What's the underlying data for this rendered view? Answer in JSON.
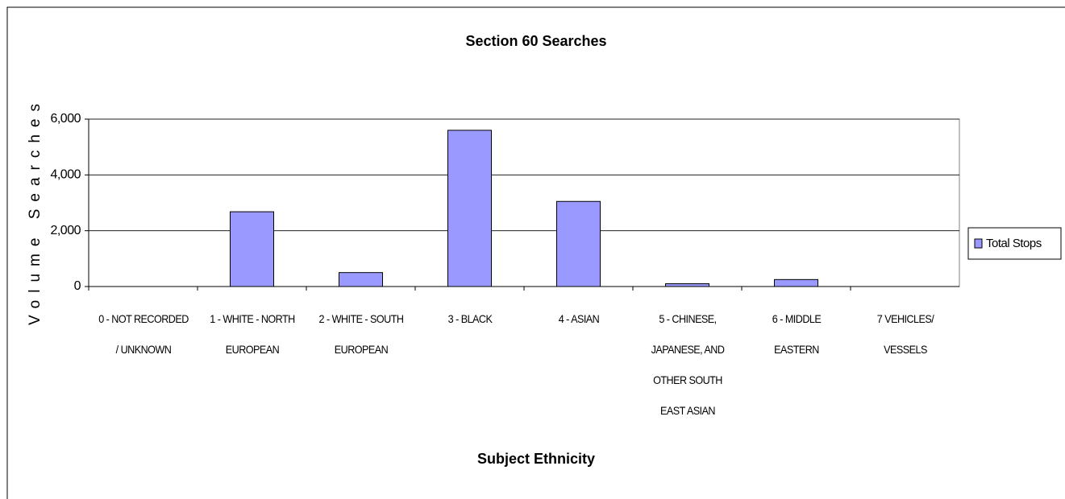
{
  "chart_data": {
    "type": "bar",
    "title": "Section 60 Searches",
    "x_label": "Subject Ethnicity",
    "y_label": "Volume Searches",
    "categories": [
      "0 - NOT RECORDED / UNKNOWN",
      "1 - WHITE - NORTH EUROPEAN",
      "2 - WHITE - SOUTH EUROPEAN",
      "3 - BLACK",
      "4 - ASIAN",
      "5 - CHINESE, JAPANESE, AND OTHER SOUTH EAST ASIAN",
      "6 - MIDDLE EASTERN",
      "7 VEHICLES/ VESSELS"
    ],
    "series": [
      {
        "name": "Total Stops",
        "color": "#9999ff",
        "values": [
          0,
          2680,
          500,
          5600,
          3050,
          100,
          250,
          0
        ]
      }
    ],
    "ylim": [
      0,
      6000
    ],
    "yticks": [
      0,
      {
        "value": 2000,
        "label": "2,000"
      },
      {
        "value": 4000,
        "label": "4,000"
      },
      {
        "value": 6000,
        "label": "6,000"
      }
    ],
    "grid": true,
    "legend": "right"
  }
}
